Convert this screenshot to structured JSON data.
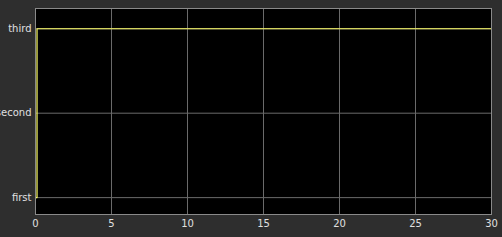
{
  "chart_data": {
    "type": "line",
    "x": [
      0,
      0.1,
      30
    ],
    "series": [
      {
        "values": [
          1,
          3,
          3
        ],
        "color": "#ffff66",
        "line_style": "step"
      }
    ],
    "xlim": [
      0,
      30
    ],
    "xticks": [
      0,
      5,
      10,
      15,
      20,
      25,
      30
    ],
    "ylim": [
      0.8,
      3.24
    ],
    "yticks": [
      {
        "value": 1,
        "label": "first"
      },
      {
        "value": 2,
        "label": "second"
      },
      {
        "value": 3,
        "label": "third"
      }
    ],
    "grid": true
  }
}
